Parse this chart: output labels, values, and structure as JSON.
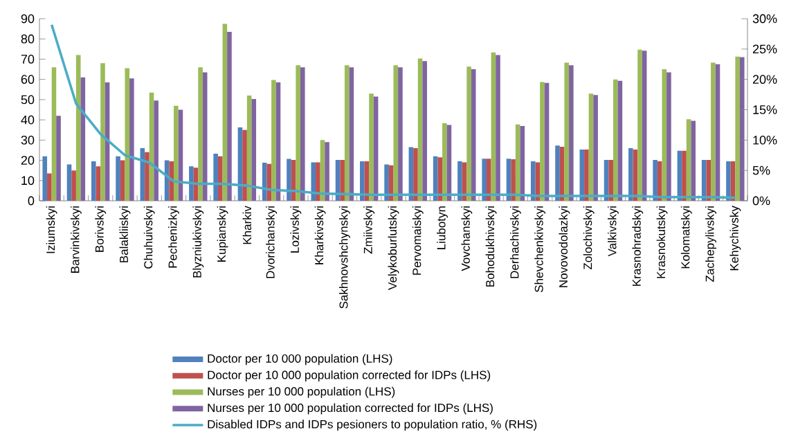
{
  "chart_data": {
    "type": "bar",
    "categories": [
      "Iziumskyi",
      "Barvinkivskyi",
      "Borivskyi",
      "Balakliiskyi",
      "Chuhuivskyi",
      "Pechenizkyi",
      "Blyzniukivskyi",
      "Kupianskyi",
      "Kharkiv",
      "Dvorichanskyi",
      "Lozivskyi",
      "Kharkivskyi",
      "Sakhnovshchynskyi",
      "Zmiivskyi",
      "Velykoburlutskyi",
      "Pervomaiskyi",
      "Liubotyn",
      "Vovchanskyi",
      "Bohodukhivskyi",
      "Derhachivskyi",
      "Shevchenkivskyi",
      "Novovodolazkyi",
      "Zolochivskyi",
      "Valkivskyi",
      "Krasnohradskyi",
      "Krasnokutskyi",
      "Kolomatskyi",
      "Zachepylivskyi",
      "Kehychivsky"
    ],
    "series": [
      {
        "name": "Doctor per 10 000 population (LHS)",
        "color": "#4f81bd",
        "values": [
          22,
          18,
          19.5,
          22,
          26,
          20,
          17,
          23.3,
          36.3,
          18.8,
          20.7,
          19,
          20.2,
          19.5,
          18,
          26.5,
          22,
          19.5,
          20.8,
          20.8,
          19.5,
          27.3,
          25.3,
          20.2,
          26,
          20.2,
          24.7,
          20.2,
          19.5
        ]
      },
      {
        "name": "Doctor per 10 000 population corrected for IDPs (LHS)",
        "color": "#c0504d",
        "values": [
          13.5,
          15,
          17,
          20,
          24,
          19.5,
          16.3,
          22,
          35,
          18.2,
          20.2,
          19,
          20.2,
          19.5,
          17.5,
          26,
          21.5,
          19,
          20.8,
          20.5,
          19,
          26.7,
          25.3,
          20.2,
          25.3,
          19.5,
          24.7,
          20.2,
          19.5
        ]
      },
      {
        "name": "Nurses per 10 000 population (LHS)",
        "color": "#9bbb59",
        "values": [
          66,
          72,
          68,
          65.5,
          53.5,
          47,
          66,
          87.5,
          52,
          59.7,
          67,
          30,
          67,
          53,
          67,
          70.3,
          38.3,
          66.3,
          73.3,
          37.7,
          58.7,
          68.3,
          53,
          60,
          74.7,
          65,
          40.3,
          68.3,
          71.3
        ]
      },
      {
        "name": "Nurses per 10 000 population corrected for IDPs (LHS)",
        "color": "#8064a2",
        "values": [
          42,
          61,
          58.5,
          60.5,
          49.5,
          45,
          63.5,
          83.5,
          50.3,
          58.5,
          66,
          29,
          66,
          51.5,
          66,
          69,
          37.5,
          65,
          72,
          37,
          58.3,
          67,
          52.3,
          59.3,
          74.2,
          63.5,
          39.5,
          67.5,
          71
        ]
      },
      {
        "name": "Disabled IDPs and IDPs pesioners to population ratio, % (RHS)",
        "color": "#4bacc6",
        "type": "line",
        "axis": "y2",
        "values": [
          29,
          16,
          11,
          7.5,
          6.3,
          3.2,
          2.8,
          2.8,
          2.5,
          1.8,
          1.6,
          1.2,
          1.1,
          1,
          1,
          1,
          1,
          1,
          1,
          1,
          0.8,
          0.8,
          0.8,
          0.8,
          0.8,
          0.6,
          0.6,
          0.6,
          0.5
        ]
      }
    ],
    "ylim": [
      0,
      90
    ],
    "yticks": [
      0,
      10,
      20,
      30,
      40,
      50,
      60,
      70,
      80,
      90
    ],
    "y2lim": [
      0,
      30
    ],
    "y2ticks": [
      {
        "value": 0,
        "label": "0%"
      },
      {
        "value": 5,
        "label": "5%"
      },
      {
        "value": 10,
        "label": "10%"
      },
      {
        "value": 15,
        "label": "15%"
      },
      {
        "value": 20,
        "label": "20%"
      },
      {
        "value": 25,
        "label": "25%"
      },
      {
        "value": 30,
        "label": "30%"
      }
    ],
    "legend": "bottom",
    "marker": "none"
  }
}
